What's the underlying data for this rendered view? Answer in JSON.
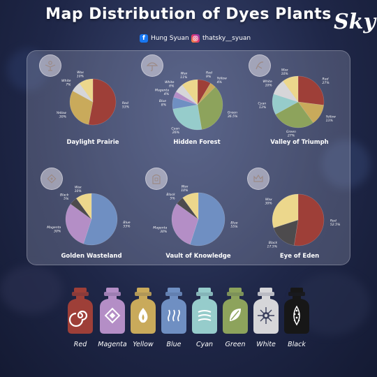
{
  "header": {
    "title": "Map Distribution of Dyes Plants",
    "facebook_handle": "Hung Syuan",
    "instagram_handle": "thatsky__syuan",
    "logo_text": "Sky"
  },
  "colors": {
    "Red": "#9e3f38",
    "Magenta": "#b48ec6",
    "Yellow": "#c9aa5b",
    "Blue": "#6f8fc2",
    "Cyan": "#96cccb",
    "Green": "#8da35c",
    "White": "#d6d6d9",
    "Black": "#4d4b4d",
    "Wax": "#ecd78c"
  },
  "chart_data": [
    {
      "type": "pie",
      "title": "Daylight  Prairie",
      "icon": "sun-figure-icon",
      "slices": [
        {
          "label": "Red",
          "value": 53,
          "text": "53%"
        },
        {
          "label": "Yellow",
          "value": 30,
          "text": "30%"
        },
        {
          "label": "White",
          "value": 7,
          "text": "7%"
        },
        {
          "label": "Wax",
          "value": 10,
          "text": "10%"
        }
      ]
    },
    {
      "type": "pie",
      "title": "Hidden  Forest",
      "icon": "rain-umbrella-icon",
      "slices": [
        {
          "label": "Red",
          "value": 9,
          "text": "9%"
        },
        {
          "label": "Yellow",
          "value": 4,
          "text": "4%"
        },
        {
          "label": "Green",
          "value": 36.5,
          "text": "36.5%"
        },
        {
          "label": "Cyan",
          "value": 26,
          "text": "26%"
        },
        {
          "label": "Blue",
          "value": 8,
          "text": "8%"
        },
        {
          "label": "Magenta",
          "value": 4,
          "text": "4%"
        },
        {
          "label": "White",
          "value": 6,
          "text": "6%"
        },
        {
          "label": "Wax",
          "value": 11,
          "text": "11%"
        }
      ]
    },
    {
      "type": "pie",
      "title": "Valley of Triumph",
      "icon": "skating-figure-icon",
      "slices": [
        {
          "label": "Red",
          "value": 27,
          "text": "27%"
        },
        {
          "label": "Yellow",
          "value": 13,
          "text": "13%"
        },
        {
          "label": "Green",
          "value": 27,
          "text": "27%"
        },
        {
          "label": "Cyan",
          "value": 13,
          "text": "13%"
        },
        {
          "label": "White",
          "value": 10,
          "text": "10%"
        },
        {
          "label": "Wax",
          "value": 10,
          "text": "10%"
        }
      ]
    },
    {
      "type": "pie",
      "title": "Golden  Wasteland",
      "icon": "crystal-icon",
      "slices": [
        {
          "label": "Blue",
          "value": 55,
          "text": "55%"
        },
        {
          "label": "Magenta",
          "value": 30,
          "text": "30%"
        },
        {
          "label": "Black",
          "value": 5,
          "text": "5%"
        },
        {
          "label": "Wax",
          "value": 10,
          "text": "10%"
        }
      ]
    },
    {
      "type": "pie",
      "title": "Vault of Knowledge",
      "icon": "vault-door-icon",
      "slices": [
        {
          "label": "Blue",
          "value": 55,
          "text": "55%"
        },
        {
          "label": "Magenta",
          "value": 30,
          "text": "30%"
        },
        {
          "label": "Black",
          "value": 5,
          "text": "5%"
        },
        {
          "label": "Wax",
          "value": 10,
          "text": "10%"
        }
      ]
    },
    {
      "type": "pie",
      "title": "Eye of Eden",
      "icon": "crown-icon",
      "slices": [
        {
          "label": "Red",
          "value": 52.5,
          "text": "52.5%"
        },
        {
          "label": "Black",
          "value": 17.5,
          "text": "17.5%"
        },
        {
          "label": "Wax",
          "value": 30,
          "text": "30%"
        }
      ]
    }
  ],
  "legend": [
    {
      "label": "Red",
      "color": "#9e3f38",
      "icon": "spiral-icon"
    },
    {
      "label": "Magenta",
      "color": "#b48ec6",
      "icon": "diamond-icon"
    },
    {
      "label": "Yellow",
      "color": "#c9aa5b",
      "icon": "flame-icon"
    },
    {
      "label": "Blue",
      "color": "#6f8fc2",
      "icon": "waves-icon"
    },
    {
      "label": "Cyan",
      "color": "#96cccb",
      "icon": "wind-icon"
    },
    {
      "label": "Green",
      "color": "#8da35c",
      "icon": "leaf-icon"
    },
    {
      "label": "White",
      "color": "#d6d6d9",
      "icon": "star-burst-icon"
    },
    {
      "label": "Black",
      "color": "#171717",
      "icon": "seed-pod-icon"
    }
  ]
}
